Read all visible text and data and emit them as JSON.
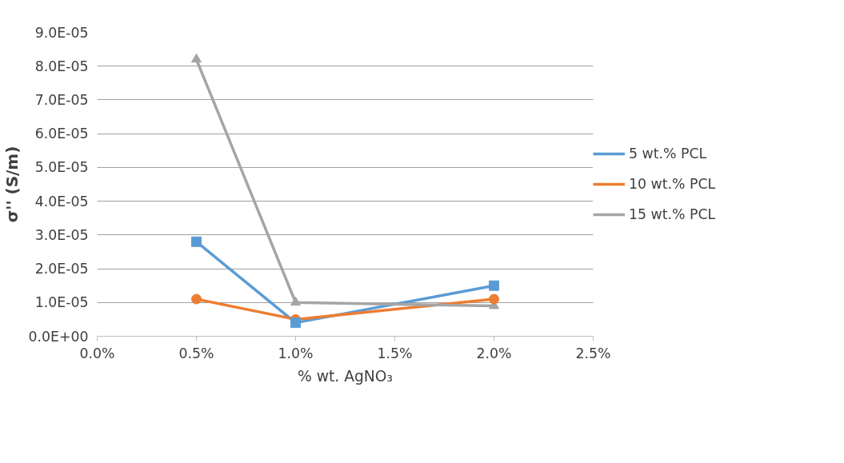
{
  "chart_data": {
    "type": "line",
    "xlabel": "% wt. AgNO₃",
    "ylabel": "σ'' (S/m)",
    "x": [
      0.5,
      1.0,
      2.0
    ],
    "series": [
      {
        "name": "5 wt.% PCL",
        "color": "#5b9bd5",
        "marker": "square",
        "values": [
          2.8e-05,
          4e-06,
          1.5e-05
        ]
      },
      {
        "name": "10 wt.% PCL",
        "color": "#ed7d31",
        "marker": "circle",
        "values": [
          1.1e-05,
          5e-06,
          1.1e-05
        ]
      },
      {
        "name": "15 wt.% PCL",
        "color": "#a5a5a5",
        "marker": "triangle",
        "values": [
          8.2e-05,
          1e-05,
          9e-06
        ]
      }
    ],
    "xlim": [
      0,
      2.5
    ],
    "xticks": [
      {
        "value": 0,
        "label": "0.0%"
      },
      {
        "value": 0.5,
        "label": "0.5%"
      },
      {
        "value": 1.0,
        "label": "1.0%"
      },
      {
        "value": 1.5,
        "label": "1.5%"
      },
      {
        "value": 2.0,
        "label": "2.0%"
      },
      {
        "value": 2.5,
        "label": "2.5%"
      }
    ],
    "ylim": [
      0,
      9e-05
    ],
    "yticks": [
      {
        "value": 0,
        "label": "0.0E+00"
      },
      {
        "value": 1e-05,
        "label": "1.0E-05"
      },
      {
        "value": 2e-05,
        "label": "2.0E-05"
      },
      {
        "value": 3e-05,
        "label": "3.0E-05"
      },
      {
        "value": 4e-05,
        "label": "4.0E-05"
      },
      {
        "value": 5e-05,
        "label": "5.0E-05"
      },
      {
        "value": 6e-05,
        "label": "6.0E-05"
      },
      {
        "value": 7e-05,
        "label": "7.0E-05"
      },
      {
        "value": 8e-05,
        "label": "8.0E-05"
      },
      {
        "value": 9e-05,
        "label": "9.0E-05"
      }
    ],
    "grid": "y",
    "legend": "right",
    "line_style": "solid"
  }
}
